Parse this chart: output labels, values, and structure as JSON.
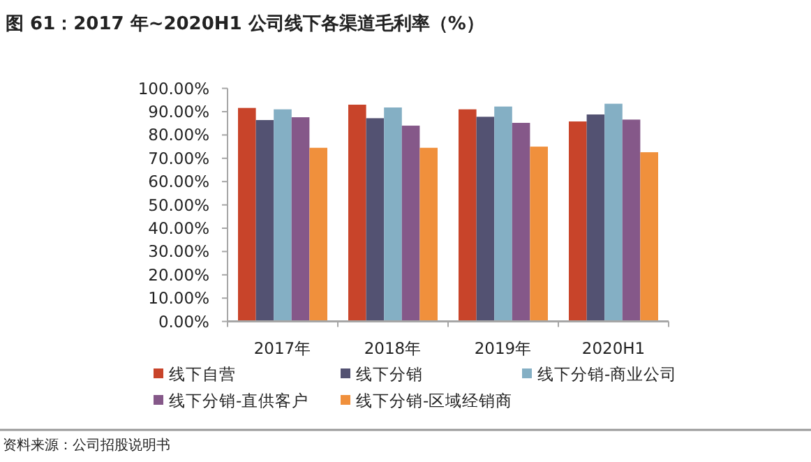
{
  "chart_data": {
    "type": "bar",
    "title": "图 61：2017 年~2020H1 公司线下各渠道毛利率（%）",
    "categories": [
      "2017年",
      "2018年",
      "2019年",
      "2020H1"
    ],
    "series": [
      {
        "name": "线下自营",
        "color": "#c8442a",
        "values": [
          91.6,
          93.0,
          91.0,
          85.8
        ]
      },
      {
        "name": "线下分销",
        "color": "#535272",
        "values": [
          86.4,
          87.2,
          87.8,
          88.8
        ]
      },
      {
        "name": "线下分销-商业公司",
        "color": "#84afc4",
        "values": [
          91.0,
          91.8,
          92.2,
          93.4
        ]
      },
      {
        "name": "线下分销-直供客户",
        "color": "#855889",
        "values": [
          87.6,
          84.0,
          85.2,
          86.6
        ]
      },
      {
        "name": "线下分销-区域经销商",
        "color": "#f0903c",
        "values": [
          74.5,
          74.5,
          75.0,
          72.6
        ]
      }
    ],
    "ylim": [
      0,
      100
    ],
    "yticks": [
      {
        "value": 0,
        "label": "0.00%"
      },
      {
        "value": 10,
        "label": "10.00%"
      },
      {
        "value": 20,
        "label": "20.00%"
      },
      {
        "value": 30,
        "label": "30.00%"
      },
      {
        "value": 40,
        "label": "40.00%"
      },
      {
        "value": 50,
        "label": "50.00%"
      },
      {
        "value": 60,
        "label": "60.00%"
      },
      {
        "value": 70,
        "label": "70.00%"
      },
      {
        "value": 80,
        "label": "80.00%"
      },
      {
        "value": 90,
        "label": "90.00%"
      },
      {
        "value": 100,
        "label": "100.00%"
      }
    ],
    "legend": "bottom",
    "annotations": [
      "资料来源：公司招股说明书"
    ]
  }
}
